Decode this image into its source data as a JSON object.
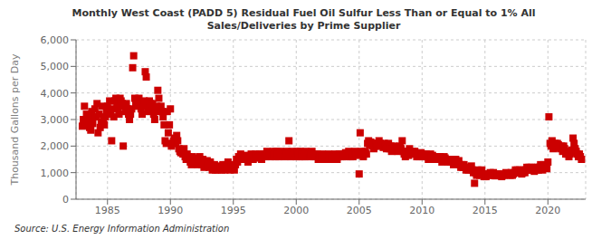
{
  "chart_data": {
    "type": "scatter",
    "title": "Monthly West Coast (PADD 5) Residual Fuel Oil Sulfur Less Than or Equal to 1% All\nSales/Deliveries by Prime Supplier",
    "ylabel": "Thousand Gallons per Day",
    "annotations": [
      "Source: U.S. Energy Information Administration"
    ],
    "color": "#cc0000",
    "marker": "square",
    "grid": true,
    "xlim": [
      1982.5,
      2023
    ],
    "ylim": [
      0,
      6000
    ],
    "xticks": [
      1985,
      1990,
      1995,
      2000,
      2005,
      2010,
      2015,
      2020
    ],
    "yticks": [
      0,
      {
        "value": 1000,
        "label": "1,000"
      },
      {
        "value": 2000,
        "label": "2,000"
      },
      {
        "value": 3000,
        "label": "3,000"
      },
      {
        "value": 4000,
        "label": "4,000"
      },
      {
        "value": 5000,
        "label": "5,000"
      },
      {
        "value": 6000,
        "label": "6,000"
      }
    ],
    "x": [
      1983.0,
      1983.08,
      1983.17,
      1983.25,
      1983.33,
      1983.42,
      1983.5,
      1983.58,
      1983.67,
      1983.75,
      1983.83,
      1983.92,
      1984.0,
      1984.08,
      1984.17,
      1984.25,
      1984.33,
      1984.42,
      1984.5,
      1984.58,
      1984.67,
      1984.75,
      1984.83,
      1984.92,
      1985.0,
      1985.08,
      1985.17,
      1985.25,
      1985.33,
      1985.42,
      1985.5,
      1985.58,
      1985.67,
      1985.75,
      1985.83,
      1985.92,
      1986.0,
      1986.08,
      1986.17,
      1986.25,
      1986.33,
      1986.42,
      1986.5,
      1986.58,
      1986.67,
      1986.75,
      1986.83,
      1986.92,
      1987.0,
      1987.08,
      1987.17,
      1987.25,
      1987.33,
      1987.42,
      1987.5,
      1987.58,
      1987.67,
      1987.75,
      1987.83,
      1987.92,
      1988.0,
      1988.08,
      1988.17,
      1988.25,
      1988.33,
      1988.42,
      1988.5,
      1988.58,
      1988.67,
      1988.75,
      1988.83,
      1988.92,
      1989.0,
      1989.08,
      1989.17,
      1989.25,
      1989.33,
      1989.42,
      1989.5,
      1989.58,
      1989.67,
      1989.75,
      1989.83,
      1989.92,
      1990.0,
      1990.08,
      1990.17,
      1990.25,
      1990.33,
      1990.42,
      1990.5,
      1990.58,
      1990.67,
      1990.75,
      1990.83,
      1990.92,
      1991.0,
      1991.08,
      1991.17,
      1991.25,
      1991.33,
      1991.42,
      1991.5,
      1991.58,
      1991.67,
      1991.75,
      1991.83,
      1991.92,
      1992.0,
      1992.08,
      1992.17,
      1992.25,
      1992.33,
      1992.42,
      1992.5,
      1992.58,
      1992.67,
      1992.75,
      1992.83,
      1992.92,
      1993.0,
      1993.08,
      1993.17,
      1993.25,
      1993.33,
      1993.42,
      1993.5,
      1993.58,
      1993.67,
      1993.75,
      1993.83,
      1993.92,
      1994.0,
      1994.08,
      1994.17,
      1994.25,
      1994.33,
      1994.42,
      1994.5,
      1994.58,
      1994.67,
      1994.75,
      1994.83,
      1994.92,
      1995.0,
      1995.08,
      1995.17,
      1995.25,
      1995.33,
      1995.42,
      1995.5,
      1995.58,
      1995.67,
      1995.75,
      1995.83,
      1995.92,
      1996.0,
      1996.08,
      1996.17,
      1996.25,
      1996.33,
      1996.42,
      1996.5,
      1996.58,
      1996.67,
      1996.75,
      1996.83,
      1996.92,
      1997.0,
      1997.08,
      1997.17,
      1997.25,
      1997.33,
      1997.42,
      1997.5,
      1997.58,
      1997.67,
      1997.75,
      1997.83,
      1997.92,
      1998.0,
      1998.08,
      1998.17,
      1998.25,
      1998.33,
      1998.42,
      1998.5,
      1998.58,
      1998.67,
      1998.75,
      1998.83,
      1998.92,
      1999.0,
      1999.08,
      1999.17,
      1999.25,
      1999.33,
      1999.42,
      1999.5,
      1999.58,
      1999.67,
      1999.75,
      1999.83,
      1999.92,
      2000.0,
      2000.08,
      2000.17,
      2000.25,
      2000.33,
      2000.42,
      2000.5,
      2000.58,
      2000.67,
      2000.75,
      2000.83,
      2000.92,
      2001.0,
      2001.08,
      2001.17,
      2001.25,
      2001.33,
      2001.42,
      2001.5,
      2001.58,
      2001.67,
      2001.75,
      2001.83,
      2001.92,
      2002.0,
      2002.08,
      2002.17,
      2002.25,
      2002.33,
      2002.42,
      2002.5,
      2002.58,
      2002.67,
      2002.75,
      2002.83,
      2002.92,
      2003.0,
      2003.08,
      2003.17,
      2003.25,
      2003.33,
      2003.42,
      2003.5,
      2003.58,
      2003.67,
      2003.75,
      2003.83,
      2003.92,
      2004.0,
      2004.08,
      2004.17,
      2004.25,
      2004.33,
      2004.42,
      2004.5,
      2004.58,
      2004.67,
      2004.75,
      2004.83,
      2004.92,
      2005.0,
      2005.08,
      2005.17,
      2005.25,
      2005.33,
      2005.42,
      2005.5,
      2005.58,
      2005.67,
      2005.75,
      2005.83,
      2005.92,
      2006.0,
      2006.08,
      2006.17,
      2006.25,
      2006.33,
      2006.42,
      2006.5,
      2006.58,
      2006.67,
      2006.75,
      2006.83,
      2006.92,
      2007.0,
      2007.08,
      2007.17,
      2007.25,
      2007.33,
      2007.42,
      2007.5,
      2007.58,
      2007.67,
      2007.75,
      2007.83,
      2007.92,
      2008.0,
      2008.08,
      2008.17,
      2008.25,
      2008.33,
      2008.42,
      2008.5,
      2008.58,
      2008.67,
      2008.75,
      2008.83,
      2008.92,
      2009.0,
      2009.08,
      2009.17,
      2009.25,
      2009.33,
      2009.42,
      2009.5,
      2009.58,
      2009.67,
      2009.75,
      2009.83,
      2009.92,
      2010.0,
      2010.08,
      2010.17,
      2010.25,
      2010.33,
      2010.42,
      2010.5,
      2010.58,
      2010.67,
      2010.75,
      2010.83,
      2010.92,
      2011.0,
      2011.08,
      2011.17,
      2011.25,
      2011.33,
      2011.42,
      2011.5,
      2011.58,
      2011.67,
      2011.75,
      2011.83,
      2011.92,
      2012.0,
      2012.08,
      2012.17,
      2012.25,
      2012.33,
      2012.42,
      2012.5,
      2012.58,
      2012.67,
      2012.75,
      2012.83,
      2012.92,
      2013.0,
      2013.08,
      2013.17,
      2013.25,
      2013.33,
      2013.42,
      2013.5,
      2013.58,
      2013.67,
      2013.75,
      2013.83,
      2013.92,
      2014.0,
      2014.08,
      2014.17,
      2014.25,
      2014.33,
      2014.42,
      2014.5,
      2014.58,
      2014.67,
      2014.75,
      2014.83,
      2014.92,
      2015.0,
      2015.08,
      2015.17,
      2015.25,
      2015.33,
      2015.42,
      2015.5,
      2015.58,
      2015.67,
      2015.75,
      2015.83,
      2015.92,
      2016.0,
      2016.08,
      2016.17,
      2016.25,
      2016.33,
      2016.42,
      2016.5,
      2016.58,
      2016.67,
      2016.75,
      2016.83,
      2016.92,
      2017.0,
      2017.08,
      2017.17,
      2017.25,
      2017.33,
      2017.42,
      2017.5,
      2017.58,
      2017.67,
      2017.75,
      2017.83,
      2017.92,
      2018.0,
      2018.08,
      2018.17,
      2018.25,
      2018.33,
      2018.42,
      2018.5,
      2018.58,
      2018.67,
      2018.75,
      2018.83,
      2018.92,
      2019.0,
      2019.08,
      2019.17,
      2019.25,
      2019.33,
      2019.42,
      2019.5,
      2019.58,
      2019.67,
      2019.75,
      2019.83,
      2019.92,
      2020.0,
      2020.08,
      2020.17,
      2020.25,
      2020.33,
      2020.42,
      2020.5,
      2020.58,
      2020.67,
      2020.75,
      2020.83,
      2020.92,
      2021.0,
      2021.08,
      2021.17,
      2021.25,
      2021.33,
      2021.42,
      2021.5,
      2021.58,
      2021.67,
      2021.75,
      2021.83,
      2021.92,
      2022.0,
      2022.08,
      2022.17,
      2022.25,
      2022.33,
      2022.42,
      2022.5,
      2022.58,
      2022.67
    ],
    "values": [
      2750,
      3000,
      3500,
      2800,
      3200,
      2900,
      3100,
      2700,
      2600,
      3300,
      2850,
      3100,
      3400,
      3100,
      3600,
      2500,
      3200,
      2700,
      2900,
      3500,
      3000,
      2800,
      3100,
      3300,
      3500,
      3300,
      3700,
      3200,
      2200,
      3400,
      3100,
      3700,
      3800,
      3600,
      3400,
      3200,
      3800,
      3700,
      3600,
      2000,
      3500,
      3300,
      3600,
      3400,
      3200,
      3000,
      3200,
      3400,
      4950,
      5400,
      3800,
      3600,
      3500,
      3700,
      3800,
      3600,
      3400,
      3200,
      3500,
      3700,
      4800,
      4600,
      3500,
      3300,
      3700,
      3600,
      3400,
      3600,
      3200,
      3000,
      3300,
      3500,
      4100,
      3800,
      3400,
      3500,
      3300,
      3100,
      2800,
      2200,
      2100,
      3300,
      2500,
      2800,
      3400,
      2000,
      2100,
      2200,
      2300,
      2100,
      2400,
      2200,
      1900,
      1800,
      1750,
      1850,
      1700,
      1900,
      1600,
      1500,
      1700,
      1600,
      1500,
      1400,
      1300,
      1600,
      1450,
      1550,
      1500,
      1400,
      1300,
      1500,
      1600,
      1400,
      1300,
      1500,
      1200,
      1400,
      1350,
      1450,
      1300,
      1200,
      1400,
      1300,
      1100,
      1200,
      1300,
      1100,
      1200,
      1100,
      1150,
      1250,
      1200,
      1100,
      1300,
      1200,
      1100,
      1300,
      1200,
      1400,
      1300,
      1100,
      1250,
      1150,
      1200,
      1100,
      1300,
      1500,
      1400,
      1600,
      1500,
      1700,
      1600,
      1500,
      1550,
      1650,
      1600,
      1500,
      1400,
      1600,
      1500,
      1700,
      1600,
      1500,
      1600,
      1700,
      1650,
      1550,
      1600,
      1700,
      1600,
      1500,
      1700,
      1600,
      1700,
      1600,
      1800,
      1700,
      1650,
      1750,
      1600,
      1700,
      1800,
      1700,
      1600,
      1800,
      1700,
      1600,
      1700,
      1800,
      1750,
      1650,
      1700,
      1600,
      1700,
      1800,
      1700,
      2200,
      1700,
      1600,
      1800,
      1700,
      1650,
      1750,
      1600,
      1800,
      1700,
      1600,
      1800,
      1700,
      1600,
      1700,
      1600,
      1800,
      1750,
      1650,
      1700,
      1600,
      1700,
      1800,
      1700,
      1600,
      1700,
      1600,
      1700,
      1500,
      1550,
      1650,
      1600,
      1700,
      1600,
      1500,
      1600,
      1500,
      1600,
      1700,
      1600,
      1500,
      1550,
      1650,
      1600,
      1700,
      1600,
      1500,
      1600,
      1700,
      1600,
      1700,
      1600,
      1700,
      1650,
      1750,
      1600,
      1700,
      1800,
      1700,
      1600,
      1700,
      1600,
      1700,
      1800,
      1700,
      1750,
      1650,
      950,
      2500,
      1800,
      1700,
      1600,
      1700,
      1800,
      1700,
      2100,
      2200,
      2050,
      2150,
      2100,
      2000,
      1900,
      2000,
      2100,
      2000,
      2100,
      2200,
      2100,
      2000,
      2050,
      1950,
      2100,
      2000,
      1900,
      2000,
      2100,
      1900,
      2000,
      1800,
      1900,
      2000,
      1950,
      1850,
      1900,
      1800,
      1900,
      2000,
      1900,
      2200,
      1800,
      1700,
      1600,
      1800,
      1750,
      1650,
      1900,
      1800,
      1700,
      1800,
      1700,
      1800,
      1700,
      1600,
      1700,
      1600,
      1650,
      1750,
      1700,
      1600,
      1700,
      1600,
      1700,
      1600,
      1500,
      1600,
      1700,
      1600,
      1650,
      1550,
      1500,
      1600,
      1500,
      1600,
      1500,
      1600,
      1500,
      1400,
      1500,
      1600,
      1550,
      1450,
      1500,
      1400,
      1500,
      1400,
      1500,
      1400,
      1300,
      1400,
      1500,
      1400,
      1350,
      1450,
      1300,
      1200,
      1300,
      1200,
      1300,
      1200,
      1100,
      1200,
      1100,
      1200,
      1150,
      1250,
      1100,
      1000,
      600,
      1000,
      900,
      1100,
      1000,
      900,
      1000,
      1100,
      950,
      850,
      900,
      850,
      950,
      900,
      950,
      1000,
      900,
      950,
      1000,
      900,
      880,
      920,
      950,
      900,
      950,
      900,
      850,
      900,
      950,
      900,
      1000,
      950,
      970,
      930,
      900,
      1000,
      900,
      950,
      1000,
      1100,
      1000,
      1100,
      1000,
      1100,
      1050,
      950,
      1000,
      1100,
      1000,
      1100,
      1200,
      1100,
      1200,
      1100,
      1200,
      1100,
      1150,
      1050,
      1200,
      1100,
      1200,
      1100,
      1200,
      1300,
      1200,
      1100,
      1300,
      1200,
      1250,
      1150,
      1400,
      3100,
      2100,
      2000,
      2200,
      1900,
      2000,
      2100,
      2000,
      2100,
      2050,
      1950,
      1900,
      2000,
      1800,
      2000,
      1900,
      1700,
      1800,
      1700,
      1600,
      1700,
      1750,
      1850,
      2300,
      2100,
      1900,
      1800,
      1700,
      1600,
      1700,
      1600,
      1500
    ]
  }
}
